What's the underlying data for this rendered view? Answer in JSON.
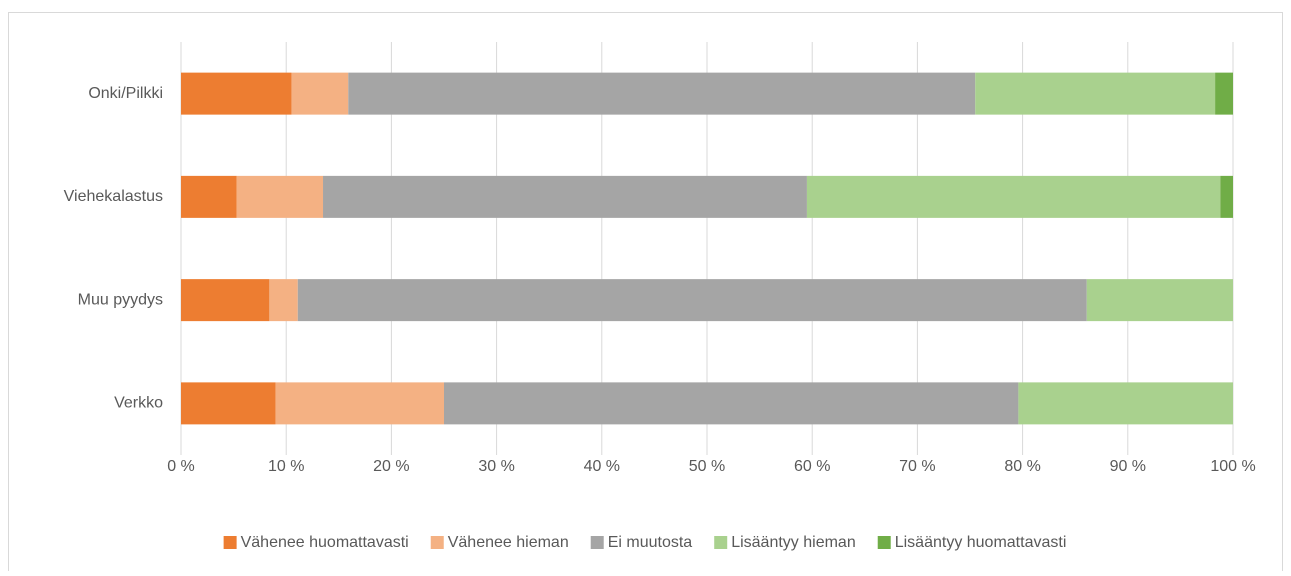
{
  "chart_data": {
    "type": "stacked-bar-horizontal",
    "categories": [
      "Onki/Pilkki",
      "Viehekalastus",
      "Muu pyydys",
      "Verkko"
    ],
    "series": [
      {
        "name": "Vähenee huomattavasti",
        "color": "#ed7d31",
        "values": [
          10.5,
          5.3,
          8.4,
          9.0
        ]
      },
      {
        "name": "Vähenee hieman",
        "color": "#f4b183",
        "values": [
          5.4,
          8.2,
          2.7,
          16.0
        ]
      },
      {
        "name": "Ei muutosta",
        "color": "#a5a5a5",
        "values": [
          59.6,
          46.0,
          75.0,
          54.6
        ]
      },
      {
        "name": "Lisääntyy hieman",
        "color": "#a9d18e",
        "values": [
          22.8,
          39.3,
          13.9,
          20.4
        ]
      },
      {
        "name": "Lisääntyy huomattavasti",
        "color": "#70ad47",
        "values": [
          1.7,
          1.2,
          0,
          0
        ]
      }
    ],
    "xlim": [
      0,
      100
    ],
    "xticks": [
      {
        "value": 0,
        "label": "0 %"
      },
      {
        "value": 10,
        "label": "10 %"
      },
      {
        "value": 20,
        "label": "20 %"
      },
      {
        "value": 30,
        "label": "30 %"
      },
      {
        "value": 40,
        "label": "40 %"
      },
      {
        "value": 50,
        "label": "50 %"
      },
      {
        "value": 60,
        "label": "60 %"
      },
      {
        "value": 70,
        "label": "70 %"
      },
      {
        "value": 80,
        "label": "80 %"
      },
      {
        "value": 90,
        "label": "90 %"
      },
      {
        "value": 100,
        "label": "100 %"
      }
    ],
    "grid": true,
    "legend": "bottom"
  }
}
